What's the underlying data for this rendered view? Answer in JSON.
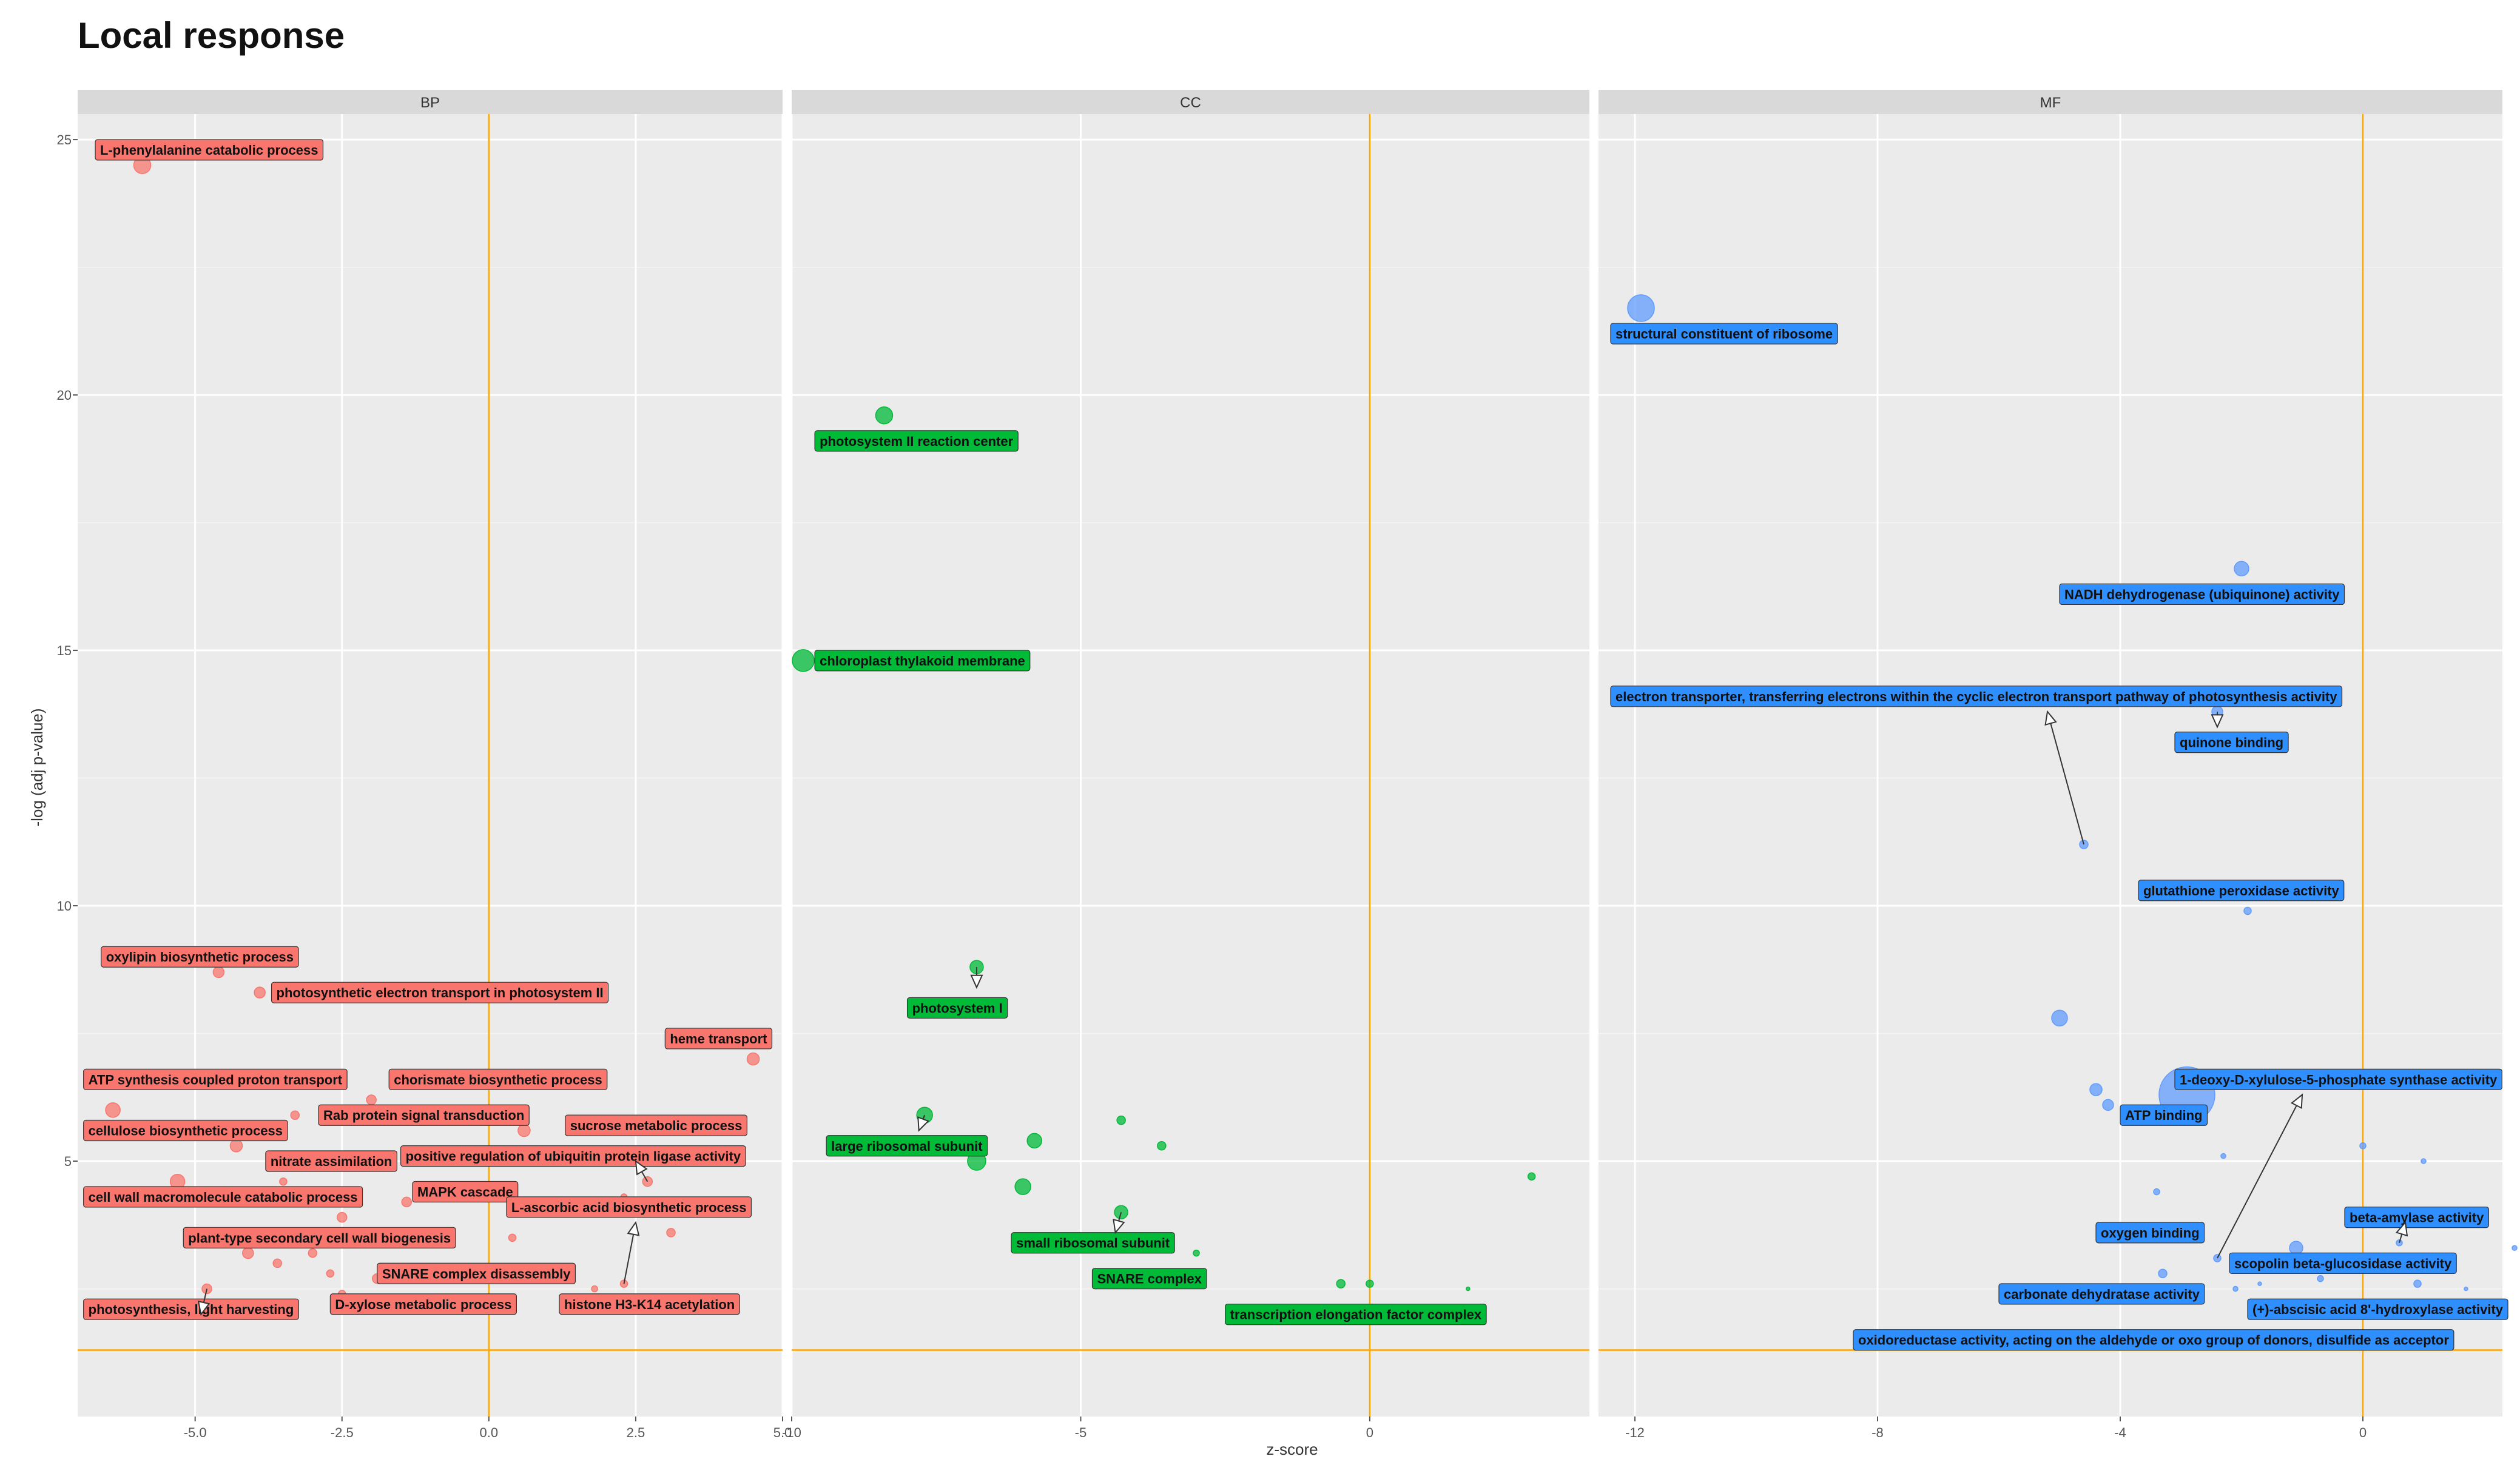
{
  "title": "Local response",
  "chart_data": {
    "type": "scatter",
    "title": "Local response",
    "xlabel": "z-score",
    "ylabel": "-log (adj p-value)",
    "ylim": [
      0,
      25.5
    ],
    "yticks": [
      5,
      10,
      15,
      20,
      25
    ],
    "threshold_y": 1.3,
    "threshold_x": 0,
    "grid": true,
    "panels": [
      {
        "name": "BP",
        "color": "#f8766d",
        "label_color": "#f8766d",
        "xlim": [
          -7.0,
          5.0
        ],
        "xticks": [
          -5.0,
          -2.5,
          0.0,
          2.5,
          5.0
        ],
        "xtick_labels": [
          "-5.0",
          "-2.5",
          "0.0",
          "2.5",
          "5.0"
        ],
        "points": [
          {
            "x": -5.9,
            "y": 24.5,
            "size": 14,
            "label": "L-phenylalanine catabolic process",
            "lx": -6.7,
            "ly": 24.8,
            "anchor": "start"
          },
          {
            "x": -4.6,
            "y": 8.7,
            "size": 9,
            "label": "oxylipin biosynthetic process",
            "lx": -6.6,
            "ly": 9.0,
            "anchor": "start"
          },
          {
            "x": -3.9,
            "y": 8.3,
            "size": 9,
            "label": "photosynthetic electron transport in photosystem II",
            "lx": -3.7,
            "ly": 8.3,
            "anchor": "start"
          },
          {
            "x": 4.5,
            "y": 7.0,
            "size": 10,
            "label": "heme transport",
            "lx": 3.0,
            "ly": 7.4,
            "anchor": "start"
          },
          {
            "x": -6.4,
            "y": 6.0,
            "size": 12,
            "label": "ATP synthesis coupled proton transport",
            "lx": -6.9,
            "ly": 6.6,
            "anchor": "start"
          },
          {
            "x": -2.0,
            "y": 6.2,
            "size": 8,
            "label": "chorismate biosynthetic process",
            "lx": -1.7,
            "ly": 6.6,
            "anchor": "start"
          },
          {
            "x": -3.3,
            "y": 5.9,
            "size": 7,
            "label": "Rab protein signal transduction",
            "lx": -2.9,
            "ly": 5.9,
            "anchor": "start"
          },
          {
            "x": 0.6,
            "y": 5.6,
            "size": 10,
            "label": "sucrose metabolic process",
            "lx": 1.3,
            "ly": 5.7,
            "anchor": "start"
          },
          {
            "x": -4.3,
            "y": 5.3,
            "size": 10,
            "label": "cellulose biosynthetic process",
            "lx": -6.9,
            "ly": 5.6,
            "anchor": "start"
          },
          {
            "x": -3.2,
            "y": 5.0,
            "size": 8,
            "label": "nitrate assimilation",
            "lx": -3.8,
            "ly": 5.0,
            "anchor": "start"
          },
          {
            "x": -1.4,
            "y": 5.0,
            "size": 8,
            "label": "positive regulation of ubiquitin protein ligase activity",
            "lx": -1.5,
            "ly": 5.1,
            "anchor": "start"
          },
          {
            "x": -5.3,
            "y": 4.6,
            "size": 12,
            "label": "cell wall macromolecule catabolic process",
            "lx": -6.9,
            "ly": 4.3,
            "anchor": "start"
          },
          {
            "x": -1.4,
            "y": 4.2,
            "size": 8,
            "label": "MAPK cascade",
            "lx": -1.3,
            "ly": 4.4,
            "anchor": "start"
          },
          {
            "x": 2.7,
            "y": 4.6,
            "size": 8,
            "label": "L-ascorbic acid biosynthetic process",
            "lx": 0.3,
            "ly": 4.1,
            "anchor": "start"
          },
          {
            "x": -2.5,
            "y": 3.9,
            "size": 8,
            "label": "plant-type secondary cell wall biogenesis",
            "lx": -5.2,
            "ly": 3.5,
            "anchor": "start"
          },
          {
            "x": -1.9,
            "y": 2.7,
            "size": 8,
            "label": "SNARE complex disassembly",
            "lx": -1.9,
            "ly": 2.8,
            "anchor": "start"
          },
          {
            "x": -4.8,
            "y": 2.5,
            "size": 8,
            "label": "photosynthesis, light harvesting",
            "lx": -6.9,
            "ly": 2.1,
            "anchor": "start"
          },
          {
            "x": -2.5,
            "y": 2.4,
            "size": 6,
            "label": "D-xylose metabolic process",
            "lx": -2.7,
            "ly": 2.2,
            "anchor": "start"
          },
          {
            "x": 2.3,
            "y": 2.6,
            "size": 6,
            "label": "histone H3-K14 acetylation",
            "lx": 1.2,
            "ly": 2.2,
            "anchor": "start"
          },
          {
            "x": -4.1,
            "y": 3.2,
            "size": 9,
            "label": "",
            "lx": 0,
            "ly": 0
          },
          {
            "x": -3.6,
            "y": 3.0,
            "size": 7,
            "label": "",
            "lx": 0,
            "ly": 0
          },
          {
            "x": -3.0,
            "y": 3.2,
            "size": 7,
            "label": "",
            "lx": 0,
            "ly": 0
          },
          {
            "x": -2.7,
            "y": 2.8,
            "size": 6,
            "label": "",
            "lx": 0,
            "ly": 0
          },
          {
            "x": 1.8,
            "y": 2.5,
            "size": 5,
            "label": "",
            "lx": 0,
            "ly": 0
          },
          {
            "x": 3.1,
            "y": 3.6,
            "size": 7,
            "label": "",
            "lx": 0,
            "ly": 0
          },
          {
            "x": 0.4,
            "y": 3.5,
            "size": 6,
            "label": "",
            "lx": 0,
            "ly": 0
          },
          {
            "x": 2.3,
            "y": 4.3,
            "size": 5,
            "label": "",
            "lx": 0,
            "ly": 0
          },
          {
            "x": -3.5,
            "y": 4.6,
            "size": 6,
            "label": "",
            "lx": 0,
            "ly": 0
          }
        ]
      },
      {
        "name": "CC",
        "color": "#00ba38",
        "label_color": "#00ba38",
        "xlim": [
          -10.0,
          3.8
        ],
        "xticks": [
          -10,
          -5,
          0
        ],
        "xtick_labels": [
          "-10",
          "-5",
          "0"
        ],
        "points": [
          {
            "x": -8.4,
            "y": 19.6,
            "size": 14,
            "label": "photosystem II reaction center",
            "lx": -9.6,
            "ly": 19.1,
            "anchor": "start"
          },
          {
            "x": -9.8,
            "y": 14.8,
            "size": 18,
            "label": "chloroplast thylakoid membrane",
            "lx": -9.6,
            "ly": 14.8,
            "anchor": "start"
          },
          {
            "x": -6.8,
            "y": 8.8,
            "size": 11,
            "label": "photosystem I",
            "lx": -8.0,
            "ly": 8.0,
            "anchor": "start"
          },
          {
            "x": -7.7,
            "y": 5.9,
            "size": 13,
            "label": "large ribosomal subunit",
            "lx": -9.4,
            "ly": 5.3,
            "anchor": "start"
          },
          {
            "x": -6.8,
            "y": 5.0,
            "size": 15,
            "label": "",
            "lx": 0,
            "ly": 0
          },
          {
            "x": -5.8,
            "y": 5.4,
            "size": 12,
            "label": "",
            "lx": 0,
            "ly": 0
          },
          {
            "x": -6.0,
            "y": 4.5,
            "size": 13,
            "label": "",
            "lx": 0,
            "ly": 0
          },
          {
            "x": -4.3,
            "y": 5.8,
            "size": 7,
            "label": "",
            "lx": 0,
            "ly": 0
          },
          {
            "x": -3.6,
            "y": 5.3,
            "size": 7,
            "label": "",
            "lx": 0,
            "ly": 0
          },
          {
            "x": -4.3,
            "y": 4.0,
            "size": 11,
            "label": "small ribosomal subunit",
            "lx": -6.2,
            "ly": 3.4,
            "anchor": "start"
          },
          {
            "x": -3.0,
            "y": 3.2,
            "size": 5,
            "label": "SNARE complex",
            "lx": -4.8,
            "ly": 2.7,
            "anchor": "start"
          },
          {
            "x": 2.8,
            "y": 4.7,
            "size": 6,
            "label": "",
            "lx": 0,
            "ly": 0
          },
          {
            "x": -0.5,
            "y": 2.6,
            "size": 7,
            "label": "",
            "lx": 0,
            "ly": 0
          },
          {
            "x": 0.0,
            "y": 2.6,
            "size": 6,
            "label": "transcription elongation factor complex",
            "lx": -2.5,
            "ly": 2.0,
            "anchor": "start"
          },
          {
            "x": 1.7,
            "y": 2.5,
            "size": 3,
            "label": "",
            "lx": 0,
            "ly": 0
          }
        ]
      },
      {
        "name": "MF",
        "color": "#619cff",
        "label_color": "#2f8fff",
        "xlim": [
          -12.6,
          2.3
        ],
        "xticks": [
          -12,
          -8,
          -4,
          0
        ],
        "xtick_labels": [
          "-12",
          "-8",
          "-4",
          "0"
        ],
        "points": [
          {
            "x": -11.9,
            "y": 21.7,
            "size": 22,
            "label": "structural constituent of ribosome",
            "lx": -12.4,
            "ly": 21.2,
            "anchor": "start"
          },
          {
            "x": -2.0,
            "y": 16.6,
            "size": 12,
            "label": "NADH dehydrogenase (ubiquinone) activity",
            "lx": -5.0,
            "ly": 16.1,
            "anchor": "start"
          },
          {
            "x": -4.6,
            "y": 11.2,
            "size": 7,
            "label": "electron transporter, transferring electrons within the cyclic electron transport pathway of photosynthesis activity",
            "lx": -12.4,
            "ly": 14.1,
            "anchor": "start"
          },
          {
            "x": -2.4,
            "y": 13.8,
            "size": 9,
            "label": "quinone binding",
            "lx": -3.1,
            "ly": 13.2,
            "anchor": "start"
          },
          {
            "x": -1.9,
            "y": 9.9,
            "size": 6,
            "label": "glutathione peroxidase activity",
            "lx": -3.7,
            "ly": 10.3,
            "anchor": "start"
          },
          {
            "x": -5.0,
            "y": 7.8,
            "size": 13,
            "label": "",
            "lx": 0,
            "ly": 0
          },
          {
            "x": -2.9,
            "y": 6.3,
            "size": 46,
            "label": "ATP binding",
            "lx": -4.0,
            "ly": 5.9,
            "anchor": "start"
          },
          {
            "x": -4.4,
            "y": 6.4,
            "size": 10,
            "label": "",
            "lx": 0,
            "ly": 0
          },
          {
            "x": -4.2,
            "y": 6.1,
            "size": 9,
            "label": "1-deoxy-D-xylulose-5-phosphate synthase activity",
            "lx": -3.1,
            "ly": 6.6,
            "anchor": "start"
          },
          {
            "x": -2.4,
            "y": 3.1,
            "size": 6,
            "label": "oxygen binding",
            "lx": -4.4,
            "ly": 3.6,
            "anchor": "start"
          },
          {
            "x": -1.1,
            "y": 3.3,
            "size": 11,
            "label": "scopolin beta-glucosidase activity",
            "lx": -2.2,
            "ly": 3.0,
            "anchor": "start"
          },
          {
            "x": -2.3,
            "y": 5.1,
            "size": 4,
            "label": "",
            "lx": 0,
            "ly": 0
          },
          {
            "x": -3.4,
            "y": 4.4,
            "size": 5,
            "label": "",
            "lx": 0,
            "ly": 0
          },
          {
            "x": 0.0,
            "y": 5.3,
            "size": 5,
            "label": "",
            "lx": 0,
            "ly": 0
          },
          {
            "x": 1.0,
            "y": 5.0,
            "size": 4,
            "label": "",
            "lx": 0,
            "ly": 0
          },
          {
            "x": 0.6,
            "y": 3.4,
            "size": 5,
            "label": "beta-amylase activity",
            "lx": -0.3,
            "ly": 3.9,
            "anchor": "start"
          },
          {
            "x": 2.5,
            "y": 3.3,
            "size": 4,
            "label": "",
            "lx": 0,
            "ly": 0
          },
          {
            "x": -3.3,
            "y": 2.8,
            "size": 7,
            "label": "carbonate dehydratase activity",
            "lx": -6.0,
            "ly": 2.4,
            "anchor": "start"
          },
          {
            "x": -0.7,
            "y": 2.7,
            "size": 5,
            "label": "",
            "lx": 0,
            "ly": 0
          },
          {
            "x": 0.9,
            "y": 2.6,
            "size": 6,
            "label": "(+)-abscisic acid 8'-hydroxylase activity",
            "lx": -1.9,
            "ly": 2.1,
            "anchor": "start"
          },
          {
            "x": -2.1,
            "y": 2.5,
            "size": 4,
            "label": "",
            "lx": 0,
            "ly": 0
          },
          {
            "x": -1.7,
            "y": 2.6,
            "size": 3,
            "label": "",
            "lx": 0,
            "ly": 0
          },
          {
            "x": 1.7,
            "y": 2.5,
            "size": 3,
            "label": "",
            "lx": 0,
            "ly": 0
          },
          {
            "x": 0.5,
            "y": 1.5,
            "size": 4,
            "label": "oxidoreductase activity, acting on the aldehyde or oxo group of donors, disulfide as acceptor",
            "lx": -8.4,
            "ly": 1.5,
            "anchor": "start"
          }
        ]
      }
    ],
    "arrows": [
      {
        "panel": 2,
        "from": [
          -4.6,
          11.2
        ],
        "to": [
          -5.2,
          13.8
        ]
      },
      {
        "panel": 2,
        "from": [
          -2.4,
          3.1
        ],
        "to": [
          -1.0,
          6.3
        ]
      },
      {
        "panel": 2,
        "from": [
          0.6,
          3.4
        ],
        "to": [
          0.7,
          3.8
        ]
      },
      {
        "panel": 2,
        "from": [
          -2.4,
          13.8
        ],
        "to": [
          -2.4,
          13.5
        ]
      },
      {
        "panel": 0,
        "from": [
          2.3,
          2.6
        ],
        "to": [
          2.5,
          3.8
        ]
      },
      {
        "panel": 0,
        "from": [
          2.7,
          4.6
        ],
        "to": [
          2.5,
          5.0
        ]
      },
      {
        "panel": 0,
        "from": [
          -4.8,
          2.5
        ],
        "to": [
          -4.9,
          2.0
        ]
      },
      {
        "panel": 1,
        "from": [
          -6.8,
          8.8
        ],
        "to": [
          -6.8,
          8.4
        ]
      },
      {
        "panel": 1,
        "from": [
          -7.7,
          5.9
        ],
        "to": [
          -7.8,
          5.6
        ]
      },
      {
        "panel": 1,
        "from": [
          -4.3,
          4.0
        ],
        "to": [
          -4.4,
          3.6
        ]
      }
    ]
  }
}
